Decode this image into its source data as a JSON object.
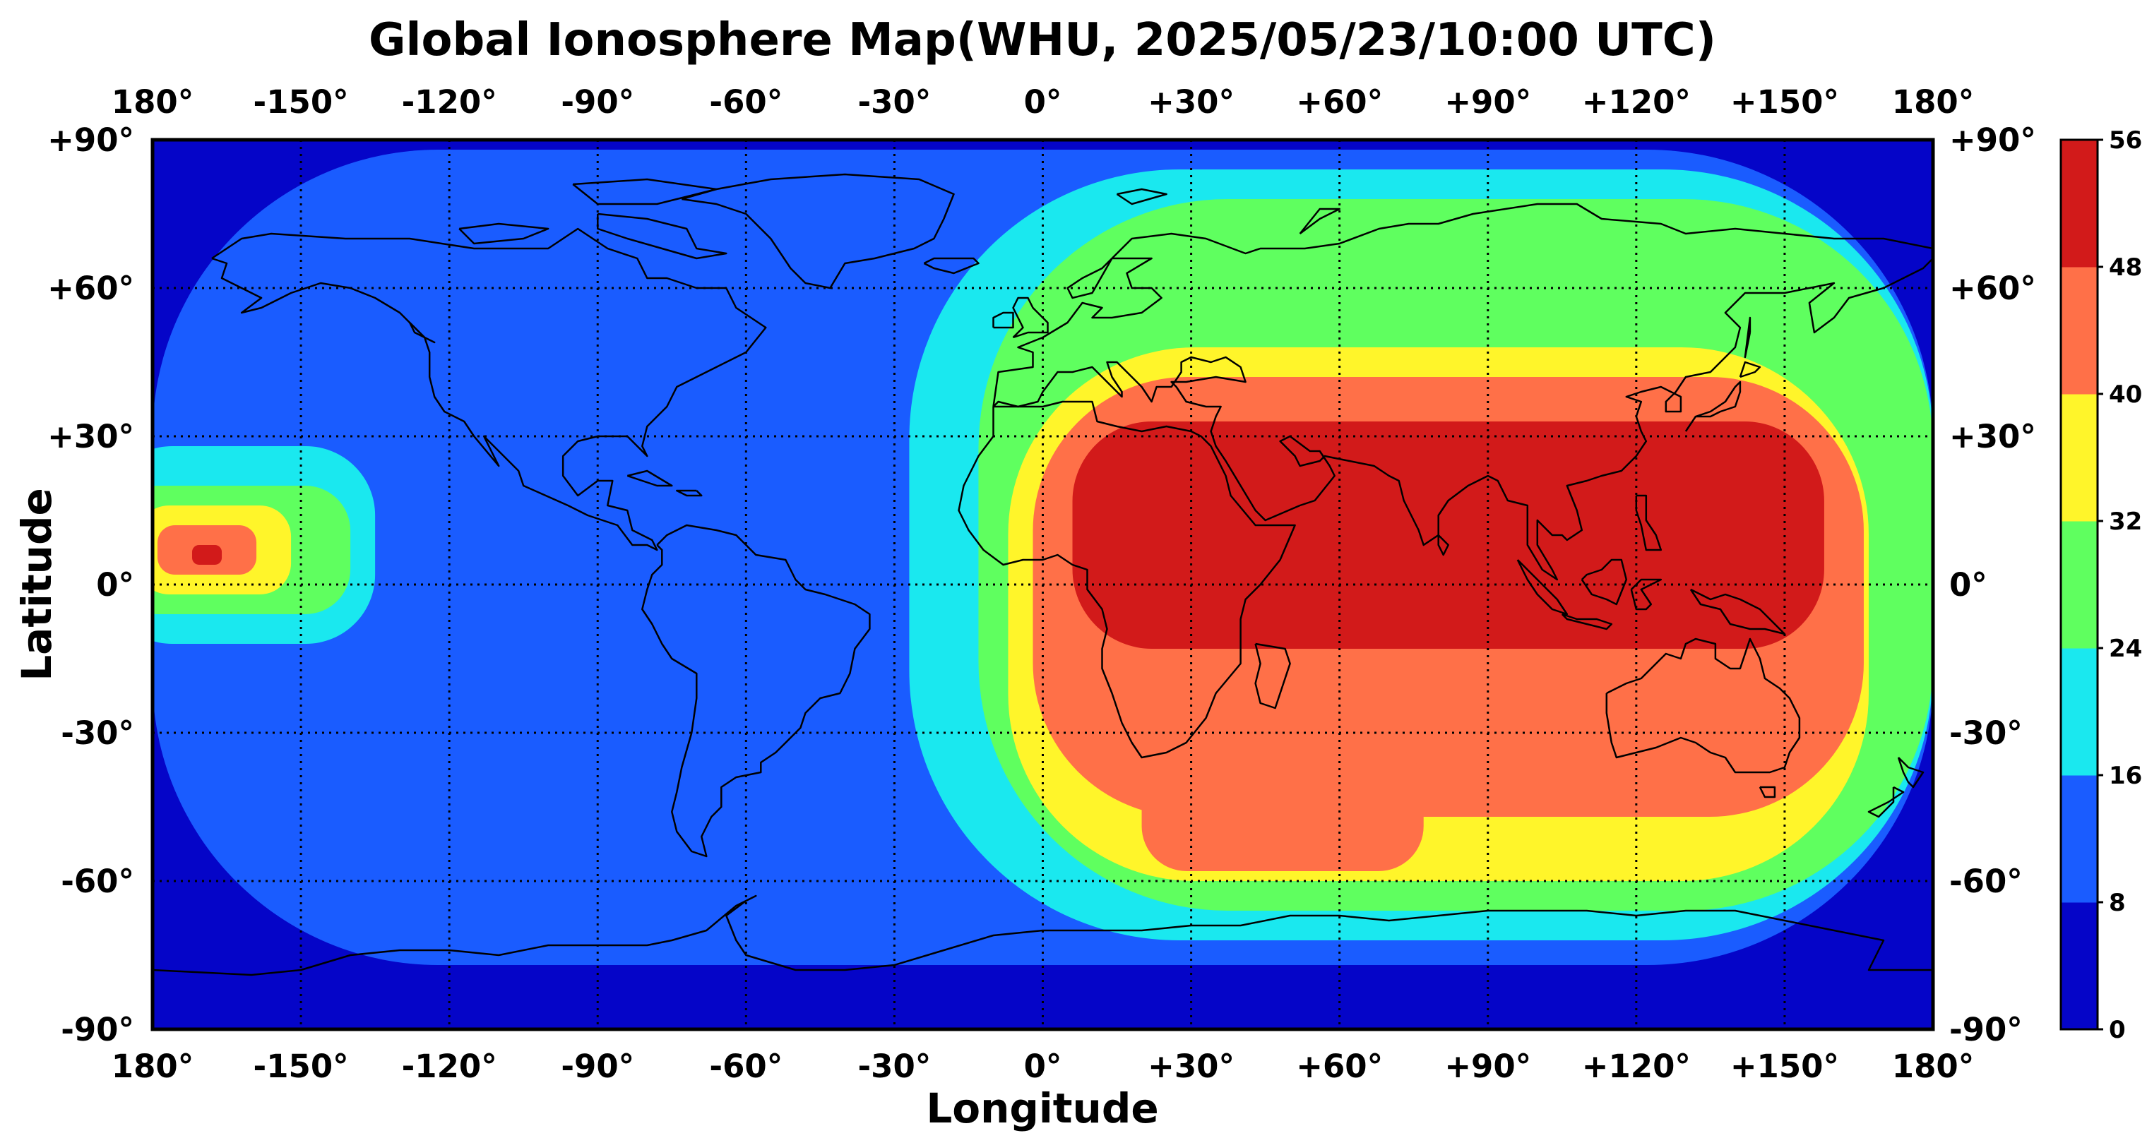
{
  "chart_data": {
    "type": "heatmap",
    "title": "Global Ionosphere Map(WHU, 2025/05/23/10:00 UTC)",
    "xlabel": "Longitude",
    "ylabel": "Latitude",
    "xlim": [
      -180,
      180
    ],
    "ylim": [
      -90,
      90
    ],
    "grid": true,
    "x_ticks": [
      {
        "value": -180,
        "label": "180°"
      },
      {
        "value": -150,
        "label": "-150°"
      },
      {
        "value": -120,
        "label": "-120°"
      },
      {
        "value": -90,
        "label": "-90°"
      },
      {
        "value": -60,
        "label": "-60°"
      },
      {
        "value": -30,
        "label": "-30°"
      },
      {
        "value": 0,
        "label": "0°"
      },
      {
        "value": 30,
        "label": "+30°"
      },
      {
        "value": 60,
        "label": "+60°"
      },
      {
        "value": 90,
        "label": "+90°"
      },
      {
        "value": 120,
        "label": "+120°"
      },
      {
        "value": 150,
        "label": "+150°"
      },
      {
        "value": 180,
        "label": "180°"
      }
    ],
    "y_ticks": [
      {
        "value": 90,
        "label": "+90°"
      },
      {
        "value": 60,
        "label": "+60°"
      },
      {
        "value": 30,
        "label": "+30°"
      },
      {
        "value": 0,
        "label": "0°"
      },
      {
        "value": -30,
        "label": "-30°"
      },
      {
        "value": -60,
        "label": "-60°"
      },
      {
        "value": -90,
        "label": "-90°"
      }
    ],
    "colorbar": {
      "levels": [
        0,
        8,
        16,
        24,
        32,
        40,
        48,
        56
      ],
      "labels": [
        "0",
        "8",
        "16",
        "24",
        "32",
        "40",
        "48",
        "56"
      ],
      "colors": [
        "#0505c8",
        "#1a5cff",
        "#1ae8ef",
        "#5fff5f",
        "#fff52a",
        "#ff7048",
        "#d21a1a"
      ]
    },
    "fields": [
      {
        "level": 0,
        "x": [
          -180,
          180
        ],
        "y": [
          -90,
          90
        ]
      },
      {
        "level": 1,
        "x": [
          -180,
          180
        ],
        "y": [
          -77,
          88
        ]
      },
      {
        "level": 2,
        "x": [
          -27,
          180
        ],
        "y": [
          -72,
          84
        ]
      },
      {
        "level": 2,
        "x": [
          -190,
          -135
        ],
        "y": [
          -12,
          28
        ]
      },
      {
        "level": 3,
        "x": [
          -13,
          180
        ],
        "y": [
          -66,
          78
        ]
      },
      {
        "level": 3,
        "x": [
          -188,
          -140
        ],
        "y": [
          -6,
          20
        ]
      },
      {
        "level": 4,
        "x": [
          -7,
          167
        ],
        "y": [
          -60,
          48
        ]
      },
      {
        "level": 4,
        "x": [
          -183,
          -152
        ],
        "y": [
          -2,
          16
        ]
      },
      {
        "level": 5,
        "x": [
          -2,
          166
        ],
        "y": [
          -47,
          42
        ]
      },
      {
        "level": 5,
        "x": [
          20,
          77
        ],
        "y": [
          -58,
          -32
        ]
      },
      {
        "level": 5,
        "x": [
          -179,
          -159
        ],
        "y": [
          2,
          12
        ]
      },
      {
        "level": 6,
        "x": [
          6,
          158
        ],
        "y": [
          -13,
          33
        ]
      },
      {
        "level": 6,
        "x": [
          -172,
          -166
        ],
        "y": [
          4,
          8
        ]
      }
    ],
    "map": "world coastlines, equirectangular projection"
  }
}
